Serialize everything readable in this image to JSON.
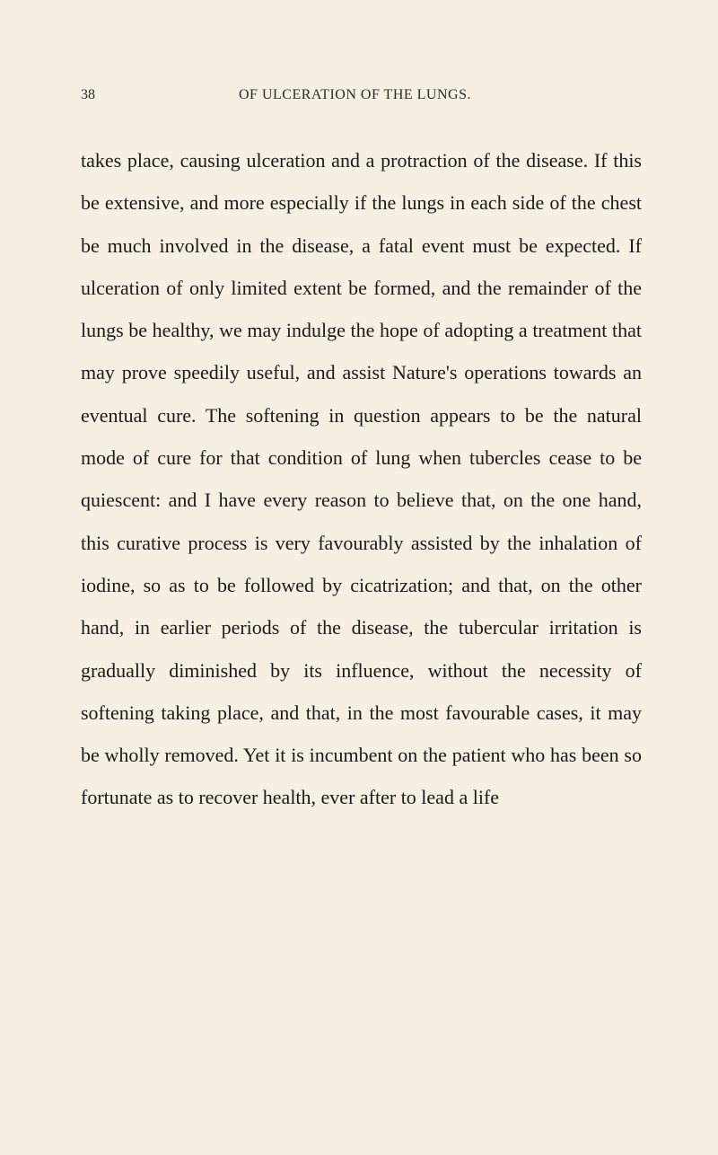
{
  "page": {
    "number": "38",
    "runningTitle": "OF ULCERATION OF THE LUNGS.",
    "bodyText": "takes place, causing ulceration and a protraction of the disease. If this be extensive, and more especially if the lungs in each side of the chest be much involved in the disease, a fatal event must be expected. If ulceration of only limited extent be formed, and the remainder of the lungs be healthy, we may indulge the hope of adopting a treatment that may prove speedily useful, and assist Nature's operations towards an eventual cure. The softening in question appears to be the natural mode of cure for that condition of lung when tubercles cease to be quiescent: and I have every reason to believe that, on the one hand, this curative process is very favourably assisted by the inhalation of iodine, so as to be followed by cicatrization; and that, on the other hand, in earlier periods of the disease, the tubercular irritation is gradually diminished by its influence, without the necessity of softening taking place, and that, in the most favourable cases, it may be wholly removed. Yet it is incumbent on the patient who has been so fortunate as to recover health, ever after to lead a life"
  },
  "styling": {
    "backgroundColor": "#f5f0e1",
    "textColor": "#1a1a1a",
    "headerColor": "#2a2a2a",
    "bodyFontSize": 22,
    "headerFontSize": 16,
    "lineHeight": 2.15,
    "fontFamily": "Georgia, 'Times New Roman', serif"
  }
}
